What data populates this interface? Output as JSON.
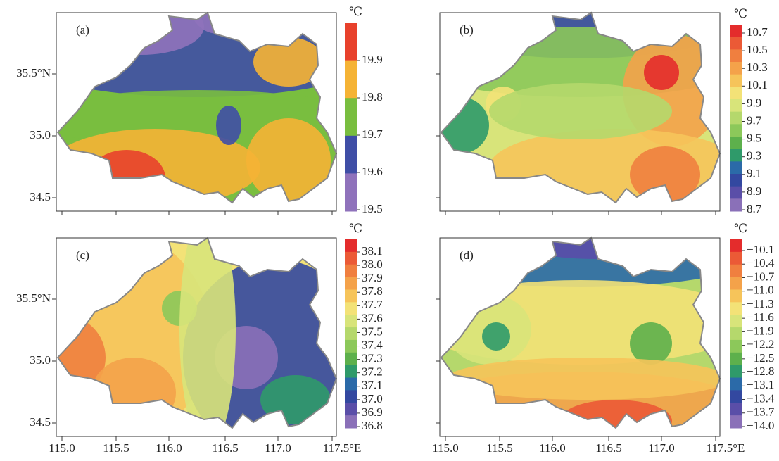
{
  "panels": [
    {
      "label": "(a)",
      "unit": "℃",
      "ticks": [
        "19.9",
        "19.8",
        "19.7",
        "19.6",
        "19.5"
      ],
      "colors": [
        "#e8412c",
        "#f5b335",
        "#79be3f",
        "#3f4ea6",
        "#8f72bb"
      ]
    },
    {
      "label": "(b)",
      "unit": "℃",
      "ticks": [
        "10.7",
        "10.5",
        "10.3",
        "10.1",
        "9.9",
        "9.7",
        "9.5",
        "9.3",
        "9.1",
        "8.9",
        "8.7"
      ],
      "colors": [
        "#e42c2c",
        "#eb5a36",
        "#f07f3f",
        "#f4a24a",
        "#f6c45a",
        "#f3e277",
        "#d8e47a",
        "#b5d86c",
        "#8cc85a",
        "#5db04c",
        "#2f9a6a",
        "#2b6aa8",
        "#3348a0",
        "#5a4ea8",
        "#8a70b8"
      ]
    },
    {
      "label": "(c)",
      "unit": "℃",
      "ticks": [
        "38.1",
        "38.0",
        "37.9",
        "37.8",
        "37.7",
        "37.6",
        "37.5",
        "37.4",
        "37.3",
        "37.2",
        "37.1",
        "37.0",
        "36.9",
        "36.8"
      ],
      "colors": [
        "#e42c2c",
        "#eb5a36",
        "#f07f3f",
        "#f4a24a",
        "#f6c45a",
        "#f3e277",
        "#d8e47a",
        "#b5d86c",
        "#8cc85a",
        "#5db04c",
        "#2f9a6a",
        "#2b6aa8",
        "#3348a0",
        "#5a4ea8",
        "#8a70b8"
      ]
    },
    {
      "label": "(d)",
      "unit": "℃",
      "ticks": [
        "−10.1",
        "−10.4",
        "−10.7",
        "−11.0",
        "−11.3",
        "−11.6",
        "−11.9",
        "−12.2",
        "−12.5",
        "−12.8",
        "−13.1",
        "−13.4",
        "−13.7",
        "−14.0"
      ],
      "colors": [
        "#e42c2c",
        "#eb5a36",
        "#f07f3f",
        "#f4a24a",
        "#f6c45a",
        "#f3e277",
        "#d8e47a",
        "#b5d86c",
        "#8cc85a",
        "#5db04c",
        "#2f9a6a",
        "#2b6aa8",
        "#3348a0",
        "#5a4ea8",
        "#8a70b8"
      ]
    }
  ],
  "y_axis_labels": [
    "35.5°N",
    "35.0",
    "34.5"
  ],
  "x_axis_labels": [
    "115.0",
    "115.5",
    "116.0",
    "116.5",
    "117.0",
    "117.5°E"
  ]
}
